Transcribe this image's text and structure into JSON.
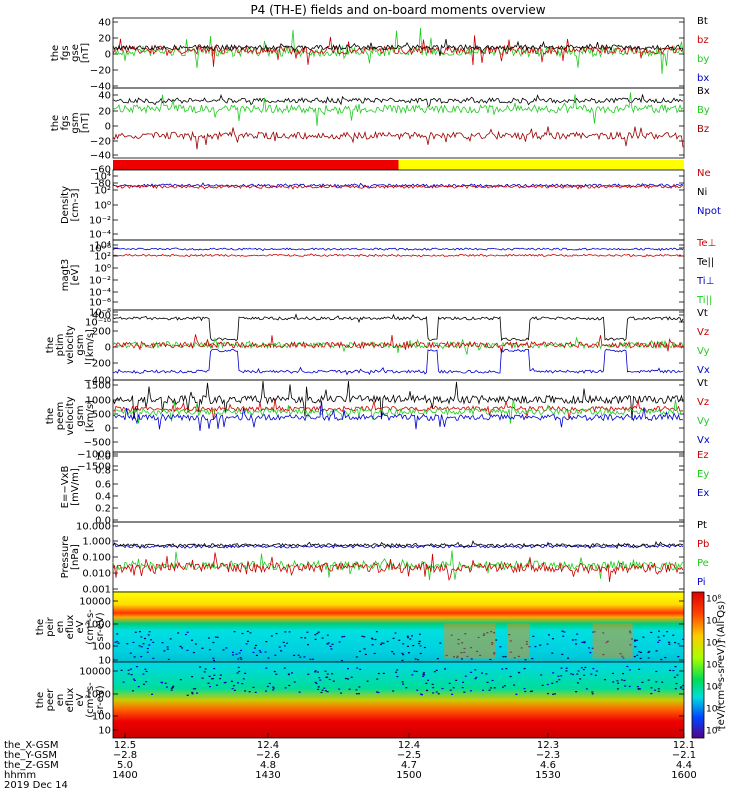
{
  "title": "P4 (TH-E) fields and on-board moments overview",
  "chart_data": [
    {
      "type": "line",
      "ylabel": [
        "the",
        "fgs",
        "gse",
        "[nT]"
      ],
      "ylim": [
        -40,
        40
      ],
      "yticks": [
        "40",
        "20",
        "0",
        "−20",
        "−40"
      ],
      "legend": [
        {
          "label": "Bt",
          "color": "#000000"
        },
        {
          "label": "bz",
          "color": "#cc0000"
        },
        {
          "label": "by",
          "color": "#22cc22"
        },
        {
          "label": "bx",
          "color": "#0000cc"
        }
      ]
    },
    {
      "type": "line",
      "ylabel": [
        "the",
        "fgs",
        "gsm",
        "[nT]"
      ],
      "ylim": [
        -80,
        40
      ],
      "yticks": [
        "40",
        "20",
        "0",
        "−20",
        "−40",
        "−60",
        "−80"
      ],
      "legend": [
        {
          "label": "Bx",
          "color": "#000000"
        },
        {
          "label": "By",
          "color": "#22cc22"
        },
        {
          "label": "Bz",
          "color": "#990000"
        }
      ]
    },
    {
      "type": "bar",
      "name": "mode bar",
      "segments": [
        {
          "from": 0,
          "to": 0.5,
          "color": "#ee0000"
        },
        {
          "from": 0.5,
          "to": 1,
          "color": "#ffff00"
        }
      ]
    },
    {
      "type": "line",
      "ylabel": [
        "Density",
        "[cm-3]"
      ],
      "log": true,
      "yticks": [
        "10⁴",
        "10²",
        "10⁰",
        "10⁻²",
        "10⁻⁴",
        "10⁻⁶"
      ],
      "legend": [
        {
          "label": "Ne",
          "color": "#cc0000"
        },
        {
          "label": "Ni",
          "color": "#000000"
        },
        {
          "label": "Npot",
          "color": "#0000cc"
        }
      ]
    },
    {
      "type": "line",
      "ylabel": [
        "magt3",
        "[eV]"
      ],
      "log": true,
      "yticks": [
        "10⁴",
        "10²",
        "10⁰",
        "10⁻²",
        "10⁻⁴",
        "10⁻⁶",
        "10⁻⁸",
        "10⁻¹⁰"
      ],
      "legend": [
        {
          "label": "Te⊥",
          "color": "#cc0000"
        },
        {
          "label": "Te||",
          "color": "#000000"
        },
        {
          "label": "Ti⊥",
          "color": "#0000cc"
        },
        {
          "label": "Ti||",
          "color": "#22cc22"
        }
      ]
    },
    {
      "type": "line",
      "ylabel": [
        "the",
        "ptim",
        "velocity",
        "gsm",
        "[km/s]"
      ],
      "ylim": [
        -400,
        400
      ],
      "yticks": [
        "400",
        "200",
        "0",
        "−200",
        "−400"
      ],
      "legend": [
        {
          "label": "Vt",
          "color": "#000000"
        },
        {
          "label": "Vz",
          "color": "#cc0000"
        },
        {
          "label": "Vy",
          "color": "#22cc22"
        },
        {
          "label": "Vx",
          "color": "#0000cc"
        }
      ]
    },
    {
      "type": "line",
      "ylabel": [
        "the",
        "peem",
        "velocity",
        "gsm",
        "[km/s]"
      ],
      "ylim": [
        -1500,
        1500
      ],
      "yticks": [
        "1500",
        "1000",
        "500",
        "0",
        "−500",
        "−1000",
        "−1500"
      ],
      "legend": [
        {
          "label": "Vt",
          "color": "#000000"
        },
        {
          "label": "Vz",
          "color": "#cc0000"
        },
        {
          "label": "Vy",
          "color": "#22cc22"
        },
        {
          "label": "Vx",
          "color": "#0000cc"
        }
      ]
    },
    {
      "type": "line",
      "ylabel": [
        "E=−VxB",
        "[mV/m]"
      ],
      "ylim": [
        0,
        1
      ],
      "yticks": [
        "1.0",
        "0.8",
        "0.6",
        "0.4",
        "0.2",
        "0.0"
      ],
      "legend": [
        {
          "label": "Ez",
          "color": "#cc0000"
        },
        {
          "label": "Ey",
          "color": "#22cc22"
        },
        {
          "label": "Ex",
          "color": "#0000cc"
        }
      ]
    },
    {
      "type": "line",
      "ylabel": [
        "Pressure",
        "[nPa]"
      ],
      "log": true,
      "ylim": [
        0.001,
        10
      ],
      "yticks": [
        "10.000",
        "1.000",
        "0.100",
        "0.010",
        "0.001"
      ],
      "legend": [
        {
          "label": "Pt",
          "color": "#000000"
        },
        {
          "label": "Pb",
          "color": "#cc0000"
        },
        {
          "label": "Pe",
          "color": "#22cc22"
        },
        {
          "label": "Pi",
          "color": "#0000cc"
        }
      ]
    },
    {
      "type": "heatmap",
      "ylabel": [
        "the",
        "peir",
        "en",
        "eflux",
        "eV",
        "(cm²-s-",
        "sr-eV)"
      ],
      "yticks": [
        "10000",
        "1000",
        "100",
        "10"
      ]
    },
    {
      "type": "heatmap",
      "ylabel": [
        "the",
        "peer",
        "en",
        "eflux",
        "eV",
        "(cm²-s-",
        "sr-eV)"
      ],
      "yticks": [
        "10000",
        "1000",
        "100",
        "10"
      ]
    }
  ],
  "colorbar": {
    "label": "[eV/(cm²-s-sr-eV)] (All Qs)",
    "ticks": [
      "10⁸",
      "10⁷",
      "10⁶",
      "10⁵",
      "10⁴",
      "10³",
      "10²"
    ]
  },
  "footer": {
    "rows": [
      {
        "label": "the_X-GSM",
        "values": [
          "12.5",
          "12.4",
          "12.4",
          "12.3",
          "12.1"
        ]
      },
      {
        "label": "the_Y-GSM",
        "values": [
          "−2.8",
          "−2.6",
          "−2.5",
          "−2.3",
          "−2.1"
        ]
      },
      {
        "label": "the_Z-GSM",
        "values": [
          "5.0",
          "4.8",
          "4.7",
          "4.6",
          "4.4"
        ]
      },
      {
        "label": "hhmm",
        "values": [
          "1400",
          "1430",
          "1500",
          "1530",
          "1600"
        ]
      }
    ],
    "date": "2019 Dec 14"
  }
}
